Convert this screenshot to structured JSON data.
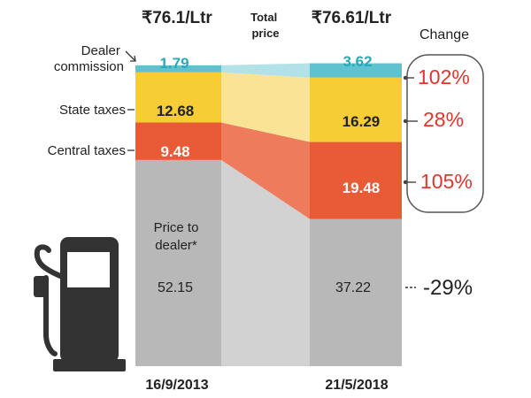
{
  "chart_data": {
    "type": "bar",
    "stacked": true,
    "categories": [
      "16/9/2013",
      "21/5/2018"
    ],
    "totals": [
      "₹76.1/Ltr",
      "₹76.61/Ltr"
    ],
    "total_caption": "Total price",
    "change_header": "Change",
    "series": [
      {
        "name": "Price to dealer*",
        "values": [
          52.15,
          37.22
        ],
        "value_labels": [
          "52.15",
          "37.22"
        ],
        "change": "-29%",
        "color": "#b8b8b8"
      },
      {
        "name": "Central taxes",
        "values": [
          9.48,
          19.48
        ],
        "value_labels": [
          "9.48",
          "19.48"
        ],
        "change": "105%",
        "color": "#e95a36"
      },
      {
        "name": "State taxes",
        "values": [
          12.68,
          16.29
        ],
        "value_labels": [
          "12.68",
          "16.29"
        ],
        "change": "28%",
        "color": "#f6cd35"
      },
      {
        "name": "Dealer commission",
        "values": [
          1.79,
          3.62
        ],
        "value_labels": [
          "1.79",
          "3.62"
        ],
        "change": "102%",
        "color": "#5fc3cf"
      }
    ]
  },
  "colors": {
    "flow_gray": "#d2d2d2",
    "flow_red": "#ee7c5c",
    "flow_yellow": "#fbe395",
    "flow_teal": "#b2e2e7",
    "label_dark": "#222222",
    "value_cyan": "#2aa7b8",
    "change_red": "#e2342c",
    "bracket": "#555555",
    "pump": "#333333"
  },
  "icon": "fuel-pump-icon"
}
